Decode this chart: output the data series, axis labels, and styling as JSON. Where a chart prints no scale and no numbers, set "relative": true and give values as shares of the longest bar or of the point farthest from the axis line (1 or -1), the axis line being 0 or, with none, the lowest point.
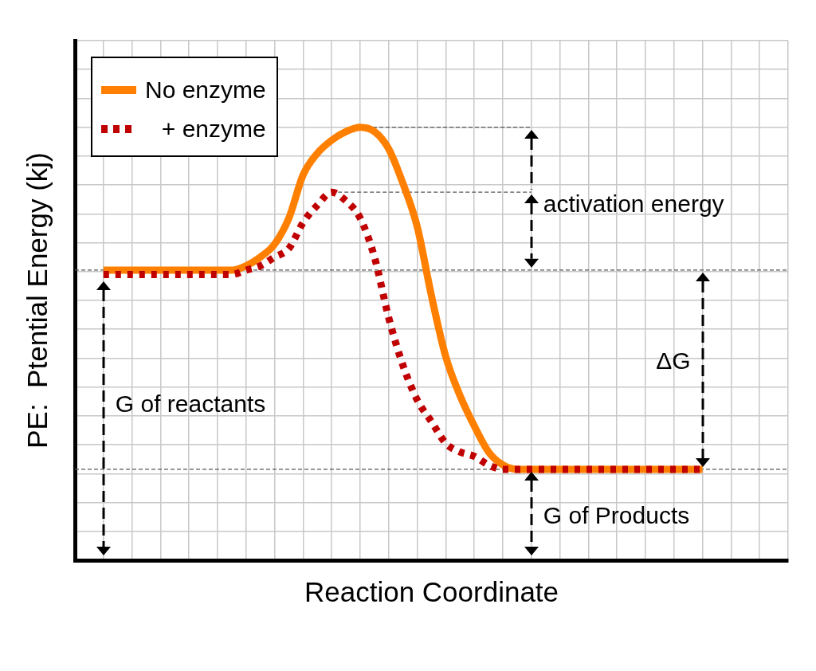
{
  "chart_data": {
    "type": "line",
    "xlabel": "Reaction Coordinate",
    "ylabel": "PE:  Ptential Energy (kj)",
    "relative": true,
    "grid": true,
    "legend": "top left",
    "marker": "none",
    "categories": [
      null,
      null,
      null,
      null,
      null,
      null,
      null,
      null,
      null,
      null,
      null,
      null,
      null,
      null,
      null,
      null,
      null,
      null,
      null,
      null,
      null,
      null,
      null,
      null,
      null,
      null,
      null,
      null,
      null,
      null,
      null,
      null,
      null,
      null,
      null,
      null,
      null,
      null,
      null,
      null,
      null,
      null,
      null,
      null,
      null,
      null,
      null,
      null,
      null,
      null,
      null
    ],
    "series": [
      {
        "name": "No enzyme",
        "color": "#ff8000",
        "line_style": "solid",
        "values": [
          null,
          null,
          0.67,
          0.67,
          0.67,
          0.67,
          0.67,
          0.67,
          0.67,
          0.67,
          0.67,
          0.67,
          0.68,
          0.7,
          0.73,
          0.79,
          0.89,
          0.94,
          0.97,
          0.99,
          1,
          0.99,
          0.95,
          0.87,
          0.77,
          0.61,
          0.47,
          0.38,
          0.31,
          0.25,
          0.22,
          0.21,
          0.21,
          0.21,
          0.21,
          0.21,
          0.21,
          0.21,
          0.21,
          0.21,
          0.21,
          0.21,
          0.21,
          0.21,
          0.21,
          null,
          null,
          null,
          null,
          null,
          null
        ]
      },
      {
        "name": "+ enzyme",
        "color": "#c00000",
        "line_style": "dotted",
        "values": [
          null,
          null,
          0.66,
          0.66,
          0.66,
          0.66,
          0.66,
          0.66,
          0.66,
          0.66,
          0.66,
          0.66,
          0.67,
          0.68,
          0.7,
          0.72,
          0.78,
          0.82,
          0.85,
          0.83,
          0.79,
          0.7,
          0.56,
          0.45,
          0.37,
          0.32,
          0.27,
          0.25,
          0.24,
          0.22,
          0.21,
          0.21,
          0.21,
          0.21,
          0.21,
          0.21,
          0.21,
          0.21,
          0.21,
          0.21,
          0.21,
          0.21,
          0.21,
          0.21,
          0.21,
          null,
          null,
          null,
          null,
          null,
          null
        ]
      }
    ],
    "ref_lines": [
      {
        "axis": "y",
        "value": 0.67,
        "color": "#555555",
        "line_style": "dashed"
      },
      {
        "axis": "y",
        "value": 0.21,
        "color": "#555555",
        "line_style": "dashed"
      },
      {
        "axis": "y",
        "value": 1,
        "color": "#555555",
        "line_style": "dashed"
      },
      {
        "axis": "y",
        "value": 0.85,
        "color": "#555555",
        "line_style": "dashed"
      }
    ],
    "annotations": [
      "activation energy",
      "ΔG",
      "G of reactants",
      "G of Products"
    ]
  }
}
